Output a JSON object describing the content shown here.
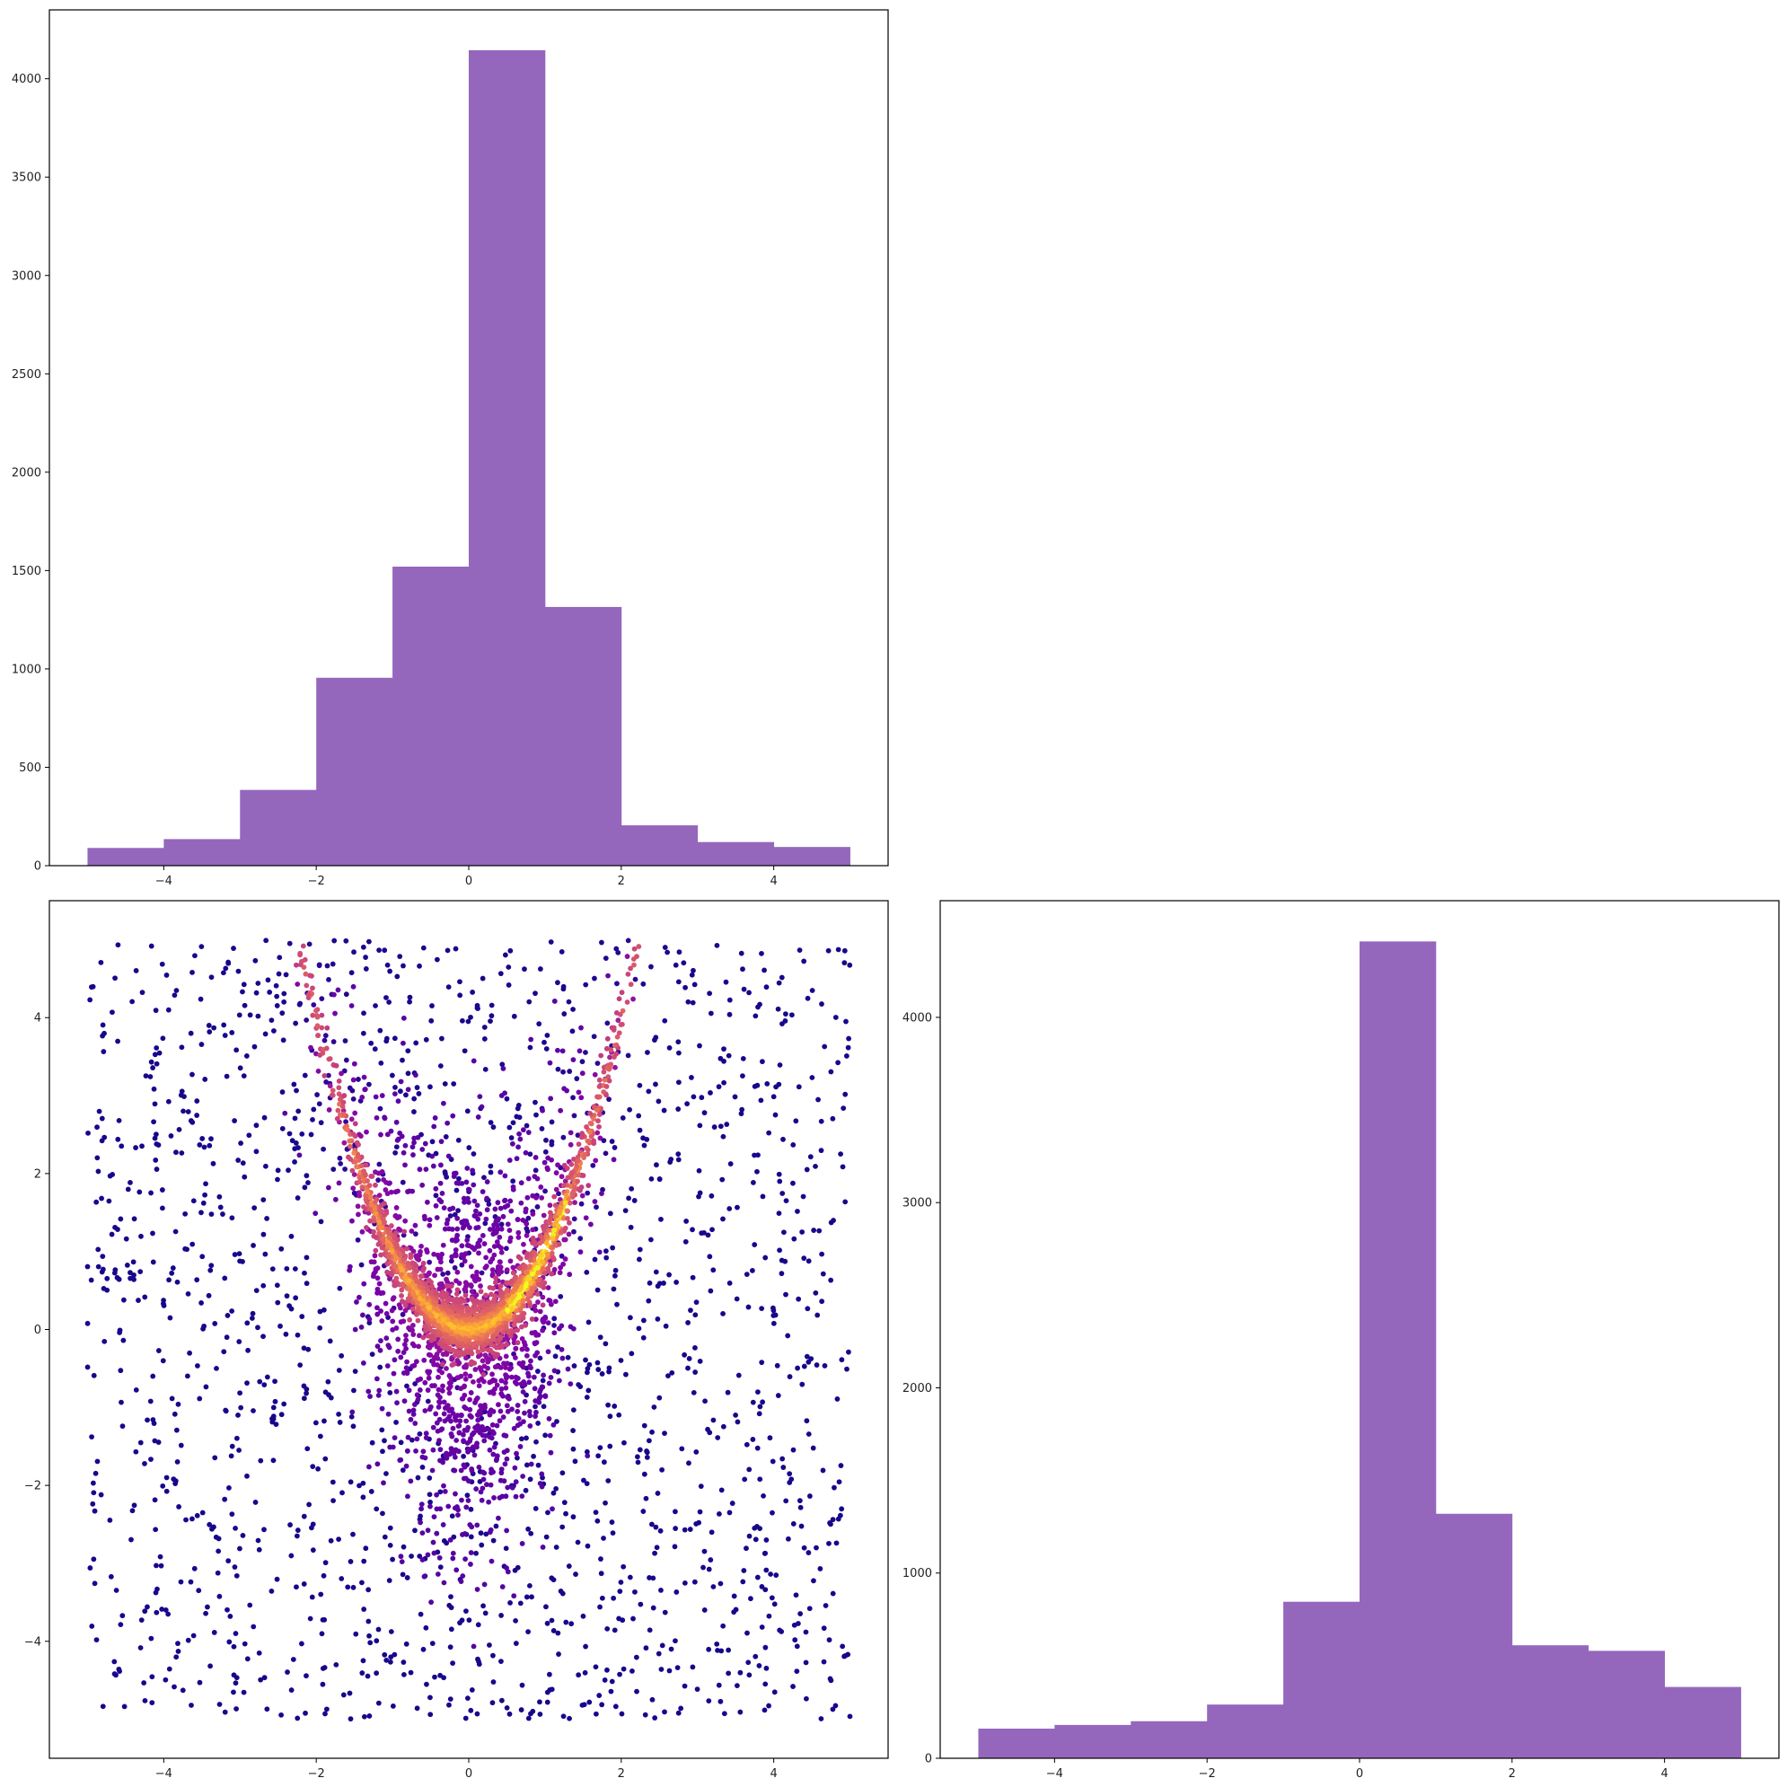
{
  "chart_data": [
    {
      "panel": "top-left",
      "type": "bar",
      "bar_color": "#9467bd",
      "bin_edges": [
        -5,
        -4,
        -3,
        -2,
        -1,
        0,
        1,
        2,
        3,
        4,
        5
      ],
      "values": [
        90,
        135,
        385,
        955,
        1520,
        4145,
        1315,
        205,
        120,
        95
      ],
      "xlim": [
        -5.5,
        5.5
      ],
      "ylim": [
        0,
        4350
      ],
      "xticks": [
        -4,
        -2,
        0,
        2,
        4
      ],
      "xtick_labels": [
        "−4",
        "−2",
        "0",
        "2",
        "4"
      ],
      "yticks": [
        0,
        500,
        1000,
        1500,
        2000,
        2500,
        3000,
        3500,
        4000
      ],
      "ytick_labels": [
        "0",
        "500",
        "1000",
        "1500",
        "2000",
        "2500",
        "3000",
        "3500",
        "4000"
      ],
      "grid": false
    },
    {
      "panel": "bottom-left",
      "type": "scatter",
      "colormap": "plasma",
      "description_of_points": "approximately 5000 points: uniform background over [-5,5]x[-5,5] plus a dense band along y = x^2, brighter (yellow) where denser",
      "xlim": [
        -5.5,
        5.5
      ],
      "ylim": [
        -5.5,
        5.5
      ],
      "xticks": [
        -4,
        -2,
        0,
        2,
        4
      ],
      "xtick_labels": [
        "−4",
        "−2",
        "0",
        "2",
        "4"
      ],
      "yticks": [
        -4,
        -2,
        0,
        2,
        4
      ],
      "ytick_labels": [
        "−4",
        "−2",
        "0",
        "2",
        "4"
      ],
      "grid": false
    },
    {
      "panel": "bottom-right",
      "type": "bar",
      "bar_color": "#9467bd",
      "bin_edges": [
        -5,
        -4,
        -3,
        -2,
        -1,
        0,
        1,
        2,
        3,
        4,
        5
      ],
      "values": [
        160,
        180,
        200,
        290,
        845,
        4410,
        1320,
        610,
        580,
        385
      ],
      "xlim": [
        -5.5,
        5.5
      ],
      "ylim": [
        0,
        4630
      ],
      "xticks": [
        -4,
        -2,
        0,
        2,
        4
      ],
      "xtick_labels": [
        "−4",
        "−2",
        "0",
        "2",
        "4"
      ],
      "yticks": [
        0,
        1000,
        2000,
        3000,
        4000
      ],
      "ytick_labels": [
        "0",
        "1000",
        "2000",
        "3000",
        "4000"
      ],
      "grid": false
    }
  ]
}
